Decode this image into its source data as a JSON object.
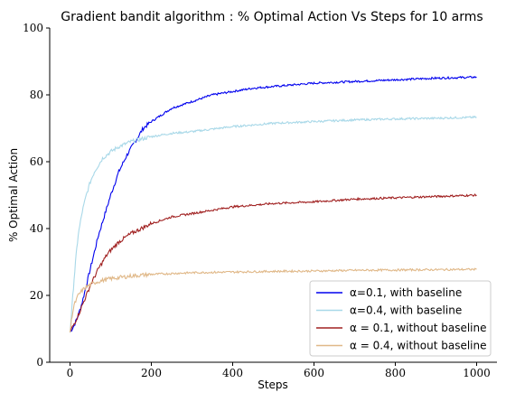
{
  "chart_data": {
    "type": "line",
    "title": "Gradient bandit algorithm : % Optimal Action Vs Steps for 10 arms",
    "xlabel": "Steps",
    "ylabel": "% Optimal Action",
    "xlim": [
      -50,
      1050
    ],
    "ylim": [
      0,
      100
    ],
    "xticks": [
      0,
      200,
      400,
      600,
      800,
      1000
    ],
    "yticks": [
      0,
      20,
      40,
      60,
      80,
      100
    ],
    "grid": false,
    "legend_position": "bottom-right",
    "series": [
      {
        "name": "α=0.1, with baseline",
        "color": "#0000ee",
        "x": [
          0,
          10,
          20,
          30,
          40,
          50,
          60,
          70,
          80,
          90,
          100,
          120,
          140,
          160,
          180,
          200,
          250,
          300,
          350,
          400,
          450,
          500,
          600,
          700,
          800,
          900,
          1000
        ],
        "y": [
          9,
          11,
          14,
          18,
          23,
          28,
          33,
          38,
          42,
          46,
          50,
          57,
          62,
          66,
          70,
          72,
          76,
          78,
          80,
          81,
          82,
          82.5,
          83.5,
          84,
          84.5,
          85,
          85.3
        ]
      },
      {
        "name": "α=0.4, with baseline",
        "color": "#a8d8e8",
        "x": [
          0,
          5,
          10,
          15,
          20,
          30,
          40,
          50,
          60,
          70,
          80,
          100,
          120,
          150,
          200,
          250,
          300,
          400,
          500,
          600,
          700,
          800,
          900,
          1000
        ],
        "y": [
          9,
          17,
          25,
          32,
          38,
          45,
          50,
          54,
          57,
          59,
          61,
          63,
          64.5,
          66,
          67.5,
          68.5,
          69,
          70.5,
          71.5,
          72,
          72.5,
          72.8,
          73,
          73.3
        ]
      },
      {
        "name": "α = 0.1, without baseline",
        "color": "#a02020",
        "x": [
          0,
          10,
          20,
          30,
          40,
          50,
          60,
          70,
          80,
          90,
          100,
          120,
          150,
          200,
          250,
          300,
          350,
          400,
          500,
          600,
          700,
          800,
          900,
          1000
        ],
        "y": [
          9,
          11.5,
          14,
          17,
          20,
          23,
          25.5,
          28,
          30,
          32,
          33.5,
          36,
          38.5,
          41.5,
          43.5,
          44.5,
          45.5,
          46.5,
          47.5,
          48,
          48.8,
          49.2,
          49.6,
          50
        ]
      },
      {
        "name": "α = 0.4, without baseline",
        "color": "#e0b888",
        "x": [
          0,
          5,
          10,
          20,
          30,
          40,
          50,
          60,
          80,
          100,
          150,
          200,
          300,
          400,
          500,
          600,
          700,
          800,
          900,
          1000
        ],
        "y": [
          9,
          14,
          17,
          20,
          21.5,
          22.5,
          23.2,
          23.8,
          24.5,
          25,
          25.8,
          26.3,
          26.8,
          27,
          27.2,
          27.3,
          27.5,
          27.6,
          27.7,
          27.8
        ]
      }
    ]
  }
}
